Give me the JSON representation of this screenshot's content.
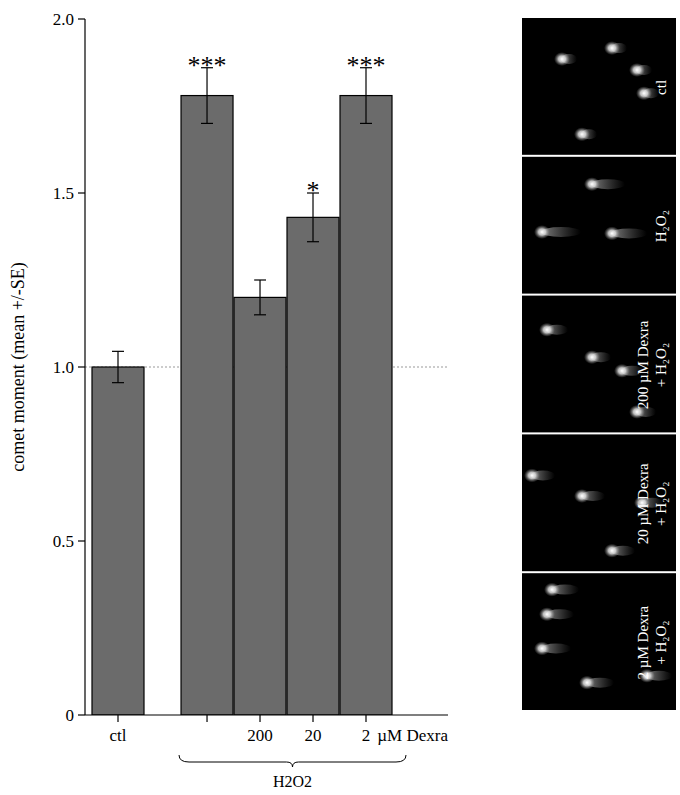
{
  "chart_data": {
    "type": "bar",
    "y_label": "comet moment (mean +/-SE)",
    "x_unit": "µM Dexra",
    "categories": [
      "ctl",
      null,
      "200",
      "20",
      "2"
    ],
    "values": [
      1.0,
      1.78,
      1.2,
      1.43,
      1.78
    ],
    "errors": [
      0.045,
      0.08,
      0.05,
      0.07,
      0.08
    ],
    "significance": [
      null,
      "***",
      null,
      "*",
      "***"
    ],
    "color": "#6b6b6b",
    "ylim": [
      0,
      2.0
    ],
    "yticks": [
      0,
      0.5,
      {
        "value": 1,
        "label": "1.0"
      },
      1.5,
      {
        "value": 2,
        "label": "2.0"
      }
    ],
    "reference_line": 1,
    "group": {
      "label": "H2O2",
      "start": 1,
      "end": 4
    },
    "image_panels": [
      "ctl",
      "H₂O₂",
      "200 µM Dexra + H₂O₂",
      "20 µM Dexra + H₂O₂",
      "2 µM Dexra + H₂O₂"
    ]
  }
}
